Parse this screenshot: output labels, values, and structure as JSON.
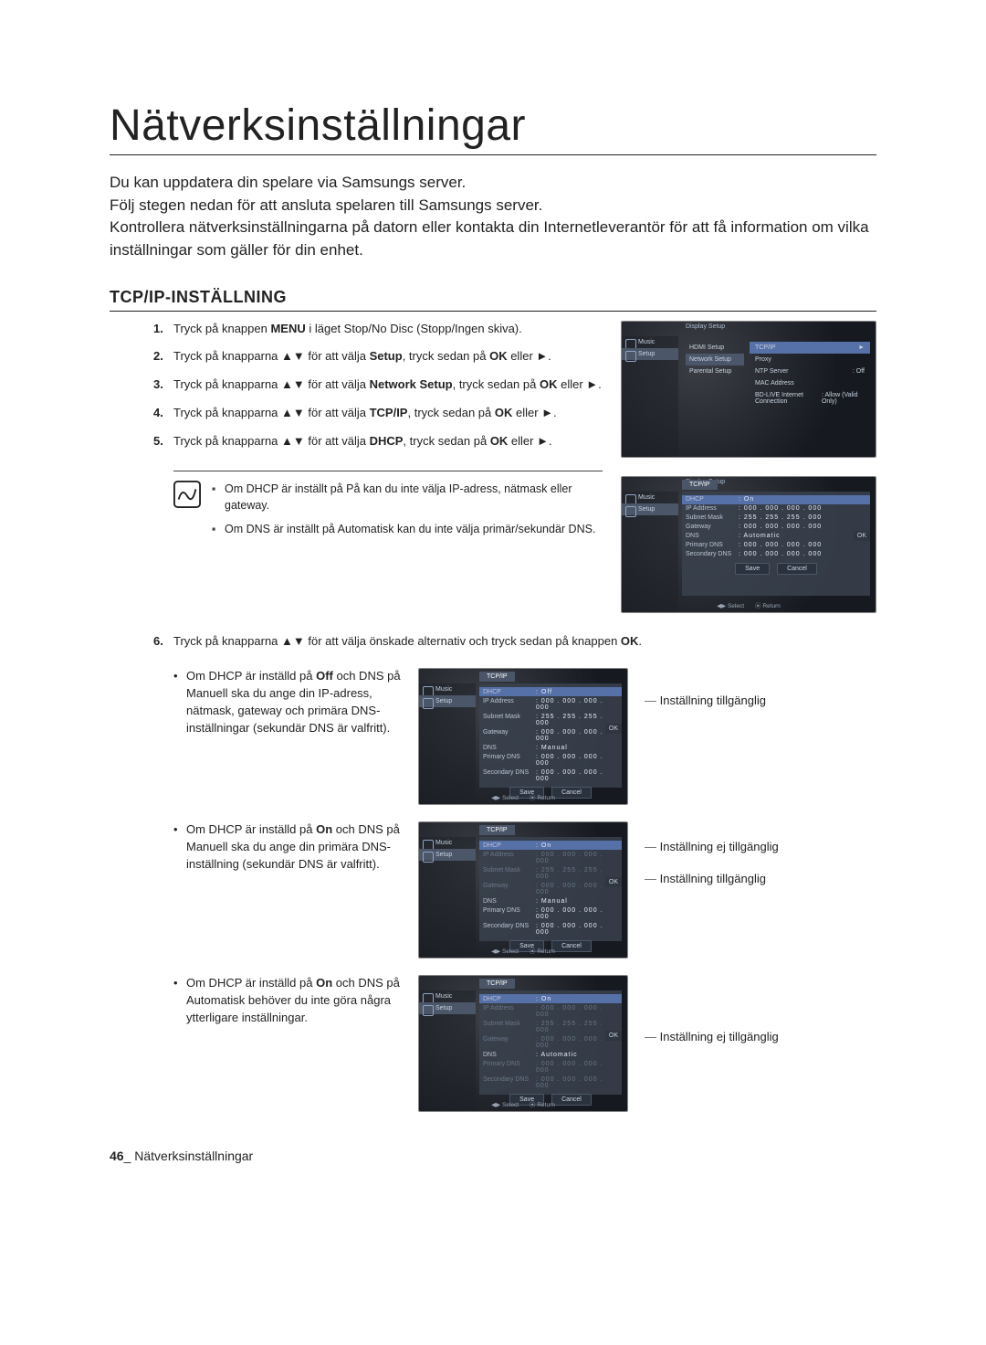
{
  "page": {
    "title": "Nätverksinställningar",
    "intro": [
      "Du kan uppdatera din spelare via Samsungs server.",
      "Följ stegen nedan för att ansluta spelaren till Samsungs server.",
      "Kontrollera nätverksinställningarna på datorn eller kontakta din Internetleverantör för att få information om vilka inställningar som gäller för din enhet."
    ],
    "section_header": "TCP/IP-INSTÄLLNING",
    "steps": {
      "s1_a": "Tryck på knappen ",
      "s1_b": "MENU",
      "s1_c": " i läget Stop/No Disc (Stopp/Ingen skiva).",
      "s2_a": "Tryck på knapparna ▲▼ för att välja ",
      "s2_b": "Setup",
      "s2_c": ", tryck sedan på ",
      "s2_d": "OK",
      "s2_e": " eller ►.",
      "s3_a": "Tryck på knapparna ▲▼ för att välja ",
      "s3_b": "Network Setup",
      "s3_c": ", tryck sedan på ",
      "s3_d": "OK",
      "s3_e": " eller ►.",
      "s4_a": "Tryck på knapparna ▲▼ för att välja ",
      "s4_b": "TCP/IP",
      "s4_c": ", tryck sedan på ",
      "s4_d": "OK",
      "s4_e": " eller ►.",
      "s5_a": "Tryck på knapparna ▲▼ för att välja  ",
      "s5_b": "DHCP",
      "s5_c": ", tryck sedan på ",
      "s5_d": "OK",
      "s5_e": " eller ►."
    },
    "notes": {
      "n1": "Om DHCP är inställt på På kan du inte välja IP-adress, nätmask eller gateway.",
      "n2": "Om DNS är inställt på Automatisk kan du inte välja primär/sekundär DNS."
    },
    "step6_a": "Tryck på knapparna ▲▼ för att välja önskade alternativ och tryck sedan på knappen ",
    "step6_b": "OK",
    "step6_c": ".",
    "cases": {
      "c1_a": "Om DHCP är inställd på ",
      "c1_b": "Off",
      "c1_c": " och DNS på Manuell ska du ange din IP-adress, nätmask, gateway och primära DNS-inställningar (sekundär DNS är valfritt).",
      "c1_label1": "Inställning tillgänglig",
      "c2_a": "Om DHCP är inställd på ",
      "c2_b": "On",
      "c2_c": " och DNS på Manuell ska du ange din primära DNS-inställning (sekundär DNS är valfritt).",
      "c2_label1": "Inställning ej tillgänglig",
      "c2_label2": "Inställning tillgänglig",
      "c3_a": "Om DHCP är inställd på ",
      "c3_b": "On",
      "c3_c": " och DNS på Automatisk behöver du inte göra några ytterligare inställningar.",
      "c3_label1": "Inställning ej tillgänglig"
    },
    "footer_page": "46",
    "footer_sep": "_ ",
    "footer_text": "Nätverksinställningar"
  },
  "shots": {
    "sidebar": {
      "music": "Music",
      "setup": "Setup"
    },
    "menu1": {
      "header": "Display Setup",
      "col": [
        "HDMI Setup",
        "Network Setup",
        "Parental Setup"
      ],
      "sel": "TCP/IP",
      "items": [
        {
          "k": "Proxy",
          "v": ""
        },
        {
          "k": "NTP Server",
          "v": ": Off"
        },
        {
          "k": "MAC Address",
          "v": ""
        },
        {
          "k": "BD-LIVE Internet Connection",
          "v": ": Allow (Valid Only)"
        }
      ]
    },
    "tcpip": {
      "header": "Display Setup",
      "tab": "TCP/IP",
      "save": "Save",
      "cancel": "Cancel",
      "select": "Select",
      "return": "Return",
      "ok": "OK",
      "rows_off": [
        {
          "k": "DHCP",
          "v": ": Off",
          "hl": true
        },
        {
          "k": "IP Address",
          "v": ": 000 . 000 . 000 . 000"
        },
        {
          "k": "Subnet Mask",
          "v": ": 255 . 255 . 255 . 000"
        },
        {
          "k": "Gateway",
          "v": ": 000 . 000 . 000 . 000"
        },
        {
          "k": "DNS",
          "v": ": Manual"
        },
        {
          "k": "Primary DNS",
          "v": ": 000 . 000 . 000 . 000"
        },
        {
          "k": "Secondary DNS",
          "v": ": 000 . 000 . 000 . 000"
        }
      ],
      "rows_on_manual": [
        {
          "k": "DHCP",
          "v": ": On",
          "hl": true
        },
        {
          "k": "IP Address",
          "v": ": 000 . 000 . 000 . 000",
          "dim": true
        },
        {
          "k": "Subnet Mask",
          "v": ": 255 . 255 . 255 . 000",
          "dim": true
        },
        {
          "k": "Gateway",
          "v": ": 000 . 000 . 000 . 000",
          "dim": true
        },
        {
          "k": "DNS",
          "v": ": Manual"
        },
        {
          "k": "Primary DNS",
          "v": ": 000 . 000 . 000 . 000"
        },
        {
          "k": "Secondary DNS",
          "v": ": 000 . 000 . 000 . 000"
        }
      ],
      "rows_on_auto": [
        {
          "k": "DHCP",
          "v": ": On",
          "hl": true
        },
        {
          "k": "IP Address",
          "v": ": 000 . 000 . 000 . 000",
          "dim": true
        },
        {
          "k": "Subnet Mask",
          "v": ": 255 . 255 . 255 . 000",
          "dim": true
        },
        {
          "k": "Gateway",
          "v": ": 000 . 000 . 000 . 000",
          "dim": true
        },
        {
          "k": "DNS",
          "v": ": Automatic"
        },
        {
          "k": "Primary DNS",
          "v": ": 000 . 000 . 000 . 000",
          "dim": true
        },
        {
          "k": "Secondary DNS",
          "v": ": 000 . 000 . 000 . 000",
          "dim": true
        }
      ],
      "rows_top": [
        {
          "k": "DHCP",
          "v": ": On",
          "hl": true
        },
        {
          "k": "IP Address",
          "v": ": 000 . 000 . 000 . 000"
        },
        {
          "k": "Subnet Mask",
          "v": ": 255 . 255 . 255 . 000"
        },
        {
          "k": "Gateway",
          "v": ": 000 . 000 . 000 . 000"
        },
        {
          "k": "DNS",
          "v": ": Automatic"
        },
        {
          "k": "Primary DNS",
          "v": ": 000 . 000 . 000 . 000"
        },
        {
          "k": "Secondary DNS",
          "v": ": 000 . 000 . 000 . 000"
        }
      ]
    }
  },
  "style": {
    "title_fontsize": 48,
    "body_fontsize": 17,
    "step_fontsize": 13,
    "note_fontsize": 12.5,
    "colors": {
      "text": "#222222",
      "shot_bg_inner": "#3b3e44",
      "shot_bg_outer": "#161a20",
      "shot_panel": "#3a424e",
      "shot_highlight": "#5670a8",
      "shot_dim": "#6b7688"
    }
  }
}
